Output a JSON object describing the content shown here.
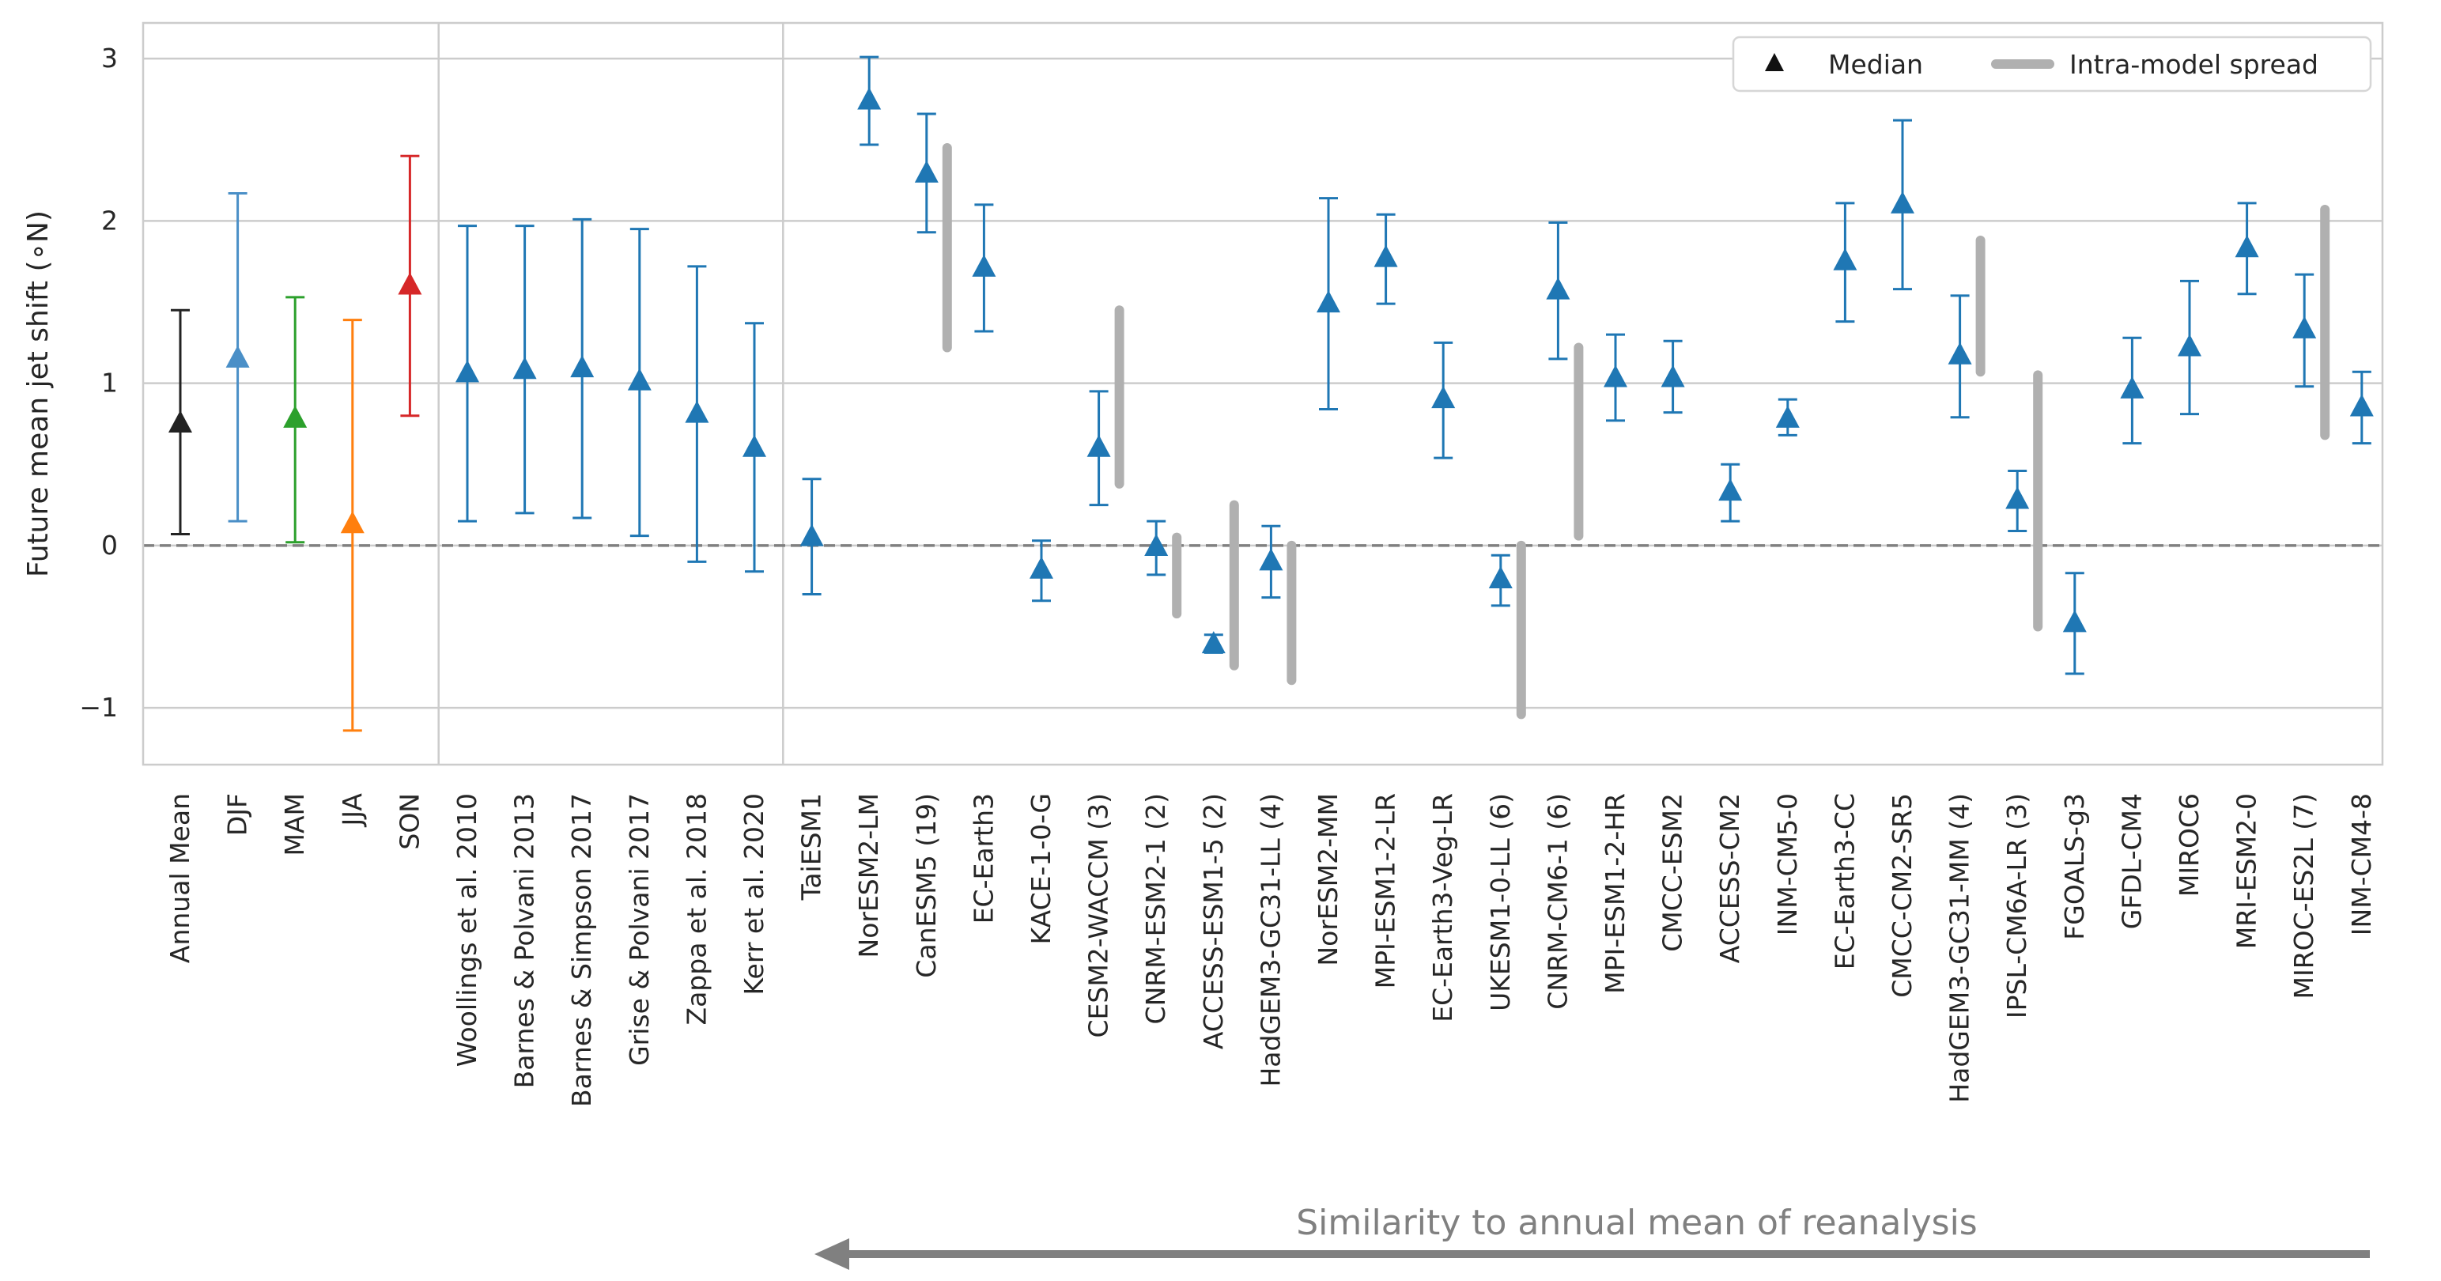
{
  "chart_data": {
    "type": "errorbar",
    "ylabel": "Future mean jet shift (∘N)",
    "xlabel": "",
    "ylim": [
      -1.35,
      3.22
    ],
    "yticks": [
      -1,
      0,
      1,
      2,
      3
    ],
    "ytick_labels": [
      "−1",
      "0",
      "1",
      "2",
      "3"
    ],
    "grid": true,
    "zero_line": true,
    "legend": {
      "placement": "top-right",
      "entries": [
        {
          "label": "Median",
          "marker": "triangle"
        },
        {
          "label": "Intra-model spread",
          "marker": "grey-line"
        }
      ]
    },
    "groups": [
      {
        "name": "seasons",
        "end_index": 4
      },
      {
        "name": "studies",
        "end_index": 10
      },
      {
        "name": "models",
        "end_index": 37
      }
    ],
    "annotation": {
      "text": "Similarity to annual mean of reanalysis",
      "arrow_direction": "left"
    },
    "colors": {
      "model": "#1f77b4",
      "spread": "#b0b0b0",
      "annual_mean": "#222222",
      "DJF": "#4a8fc7",
      "MAM": "#2ca02c",
      "JJA": "#ff7f0e",
      "SON": "#d62728"
    },
    "categories": [
      {
        "label": "Annual Mean",
        "median": 0.75,
        "low": 0.07,
        "high": 1.45,
        "color": "#222222"
      },
      {
        "label": "DJF",
        "median": 1.15,
        "low": 0.15,
        "high": 2.17,
        "color": "#4a8fc7"
      },
      {
        "label": "MAM",
        "median": 0.78,
        "low": 0.02,
        "high": 1.53,
        "color": "#2ca02c"
      },
      {
        "label": "JJA",
        "median": 0.13,
        "low": -1.14,
        "high": 1.39,
        "color": "#ff7f0e"
      },
      {
        "label": "SON",
        "median": 1.6,
        "low": 0.8,
        "high": 2.4,
        "color": "#d62728"
      },
      {
        "label": "Woollings et al. 2010",
        "median": 1.06,
        "low": 0.15,
        "high": 1.97,
        "color": "#1f77b4"
      },
      {
        "label": "Barnes & Polvani 2013",
        "median": 1.08,
        "low": 0.2,
        "high": 1.97,
        "color": "#1f77b4"
      },
      {
        "label": "Barnes & Simpson 2017",
        "median": 1.09,
        "low": 0.17,
        "high": 2.01,
        "color": "#1f77b4"
      },
      {
        "label": "Grise & Polvani 2017",
        "median": 1.01,
        "low": 0.06,
        "high": 1.95,
        "color": "#1f77b4"
      },
      {
        "label": "Zappa et al. 2018",
        "median": 0.81,
        "low": -0.1,
        "high": 1.72,
        "color": "#1f77b4"
      },
      {
        "label": "Kerr et al. 2020",
        "median": 0.6,
        "low": -0.16,
        "high": 1.37,
        "color": "#1f77b4"
      },
      {
        "label": "TaiESM1",
        "median": 0.05,
        "low": -0.3,
        "high": 0.41,
        "color": "#1f77b4"
      },
      {
        "label": "NorESM2-LM",
        "median": 2.74,
        "low": 2.47,
        "high": 3.01,
        "color": "#1f77b4"
      },
      {
        "label": "CanESM5 (19)",
        "median": 2.29,
        "low": 1.93,
        "high": 2.66,
        "color": "#1f77b4",
        "spread": [
          1.22,
          2.45
        ]
      },
      {
        "label": "EC-Earth3",
        "median": 1.71,
        "low": 1.32,
        "high": 2.1,
        "color": "#1f77b4"
      },
      {
        "label": "KACE-1-0-G",
        "median": -0.15,
        "low": -0.34,
        "high": 0.03,
        "color": "#1f77b4"
      },
      {
        "label": "CESM2-WACCM (3)",
        "median": 0.6,
        "low": 0.25,
        "high": 0.95,
        "color": "#1f77b4",
        "spread": [
          0.38,
          1.45
        ]
      },
      {
        "label": "CNRM-ESM2-1 (2)",
        "median": -0.01,
        "low": -0.18,
        "high": 0.15,
        "color": "#1f77b4",
        "spread": [
          -0.42,
          0.05
        ]
      },
      {
        "label": "ACCESS-ESM1-5 (2)",
        "median": -0.61,
        "low": -0.66,
        "high": -0.55,
        "color": "#1f77b4",
        "spread": [
          -0.74,
          0.25
        ]
      },
      {
        "label": "HadGEM3-GC31-LL (4)",
        "median": -0.1,
        "low": -0.32,
        "high": 0.12,
        "color": "#1f77b4",
        "spread": [
          -0.83,
          0.0
        ]
      },
      {
        "label": "NorESM2-MM",
        "median": 1.49,
        "low": 0.84,
        "high": 2.14,
        "color": "#1f77b4"
      },
      {
        "label": "MPI-ESM1-2-LR",
        "median": 1.77,
        "low": 1.49,
        "high": 2.04,
        "color": "#1f77b4"
      },
      {
        "label": "EC-Earth3-Veg-LR",
        "median": 0.9,
        "low": 0.54,
        "high": 1.25,
        "color": "#1f77b4"
      },
      {
        "label": "UKESM1-0-LL (6)",
        "median": -0.21,
        "low": -0.37,
        "high": -0.06,
        "color": "#1f77b4",
        "spread": [
          -1.04,
          0.0
        ]
      },
      {
        "label": "CNRM-CM6-1 (6)",
        "median": 1.57,
        "low": 1.15,
        "high": 1.99,
        "color": "#1f77b4",
        "spread": [
          0.06,
          1.22
        ]
      },
      {
        "label": "MPI-ESM1-2-HR",
        "median": 1.03,
        "low": 0.77,
        "high": 1.3,
        "color": "#1f77b4"
      },
      {
        "label": "CMCC-ESM2",
        "median": 1.03,
        "low": 0.82,
        "high": 1.26,
        "color": "#1f77b4"
      },
      {
        "label": "ACCESS-CM2",
        "median": 0.33,
        "low": 0.15,
        "high": 0.5,
        "color": "#1f77b4"
      },
      {
        "label": "INM-CM5-0",
        "median": 0.78,
        "low": 0.68,
        "high": 0.9,
        "color": "#1f77b4"
      },
      {
        "label": "EC-Earth3-CC",
        "median": 1.75,
        "low": 1.38,
        "high": 2.11,
        "color": "#1f77b4"
      },
      {
        "label": "CMCC-CM2-SR5",
        "median": 2.1,
        "low": 1.58,
        "high": 2.62,
        "color": "#1f77b4"
      },
      {
        "label": "HadGEM3-GC31-MM (4)",
        "median": 1.17,
        "low": 0.79,
        "high": 1.54,
        "color": "#1f77b4",
        "spread": [
          1.07,
          1.88
        ]
      },
      {
        "label": "IPSL-CM6A-LR (3)",
        "median": 0.28,
        "low": 0.09,
        "high": 0.46,
        "color": "#1f77b4",
        "spread": [
          -0.5,
          1.05
        ]
      },
      {
        "label": "FGOALS-g3",
        "median": -0.48,
        "low": -0.79,
        "high": -0.17,
        "color": "#1f77b4"
      },
      {
        "label": "GFDL-CM4",
        "median": 0.96,
        "low": 0.63,
        "high": 1.28,
        "color": "#1f77b4"
      },
      {
        "label": "MIROC6",
        "median": 1.22,
        "low": 0.81,
        "high": 1.63,
        "color": "#1f77b4"
      },
      {
        "label": "MRI-ESM2-0",
        "median": 1.83,
        "low": 1.55,
        "high": 2.11,
        "color": "#1f77b4"
      },
      {
        "label": "MIROC-ES2L (7)",
        "median": 1.33,
        "low": 0.98,
        "high": 1.67,
        "color": "#1f77b4",
        "spread": [
          0.68,
          2.07
        ]
      },
      {
        "label": "INM-CM4-8",
        "median": 0.85,
        "low": 0.63,
        "high": 1.07,
        "color": "#1f77b4"
      }
    ]
  }
}
